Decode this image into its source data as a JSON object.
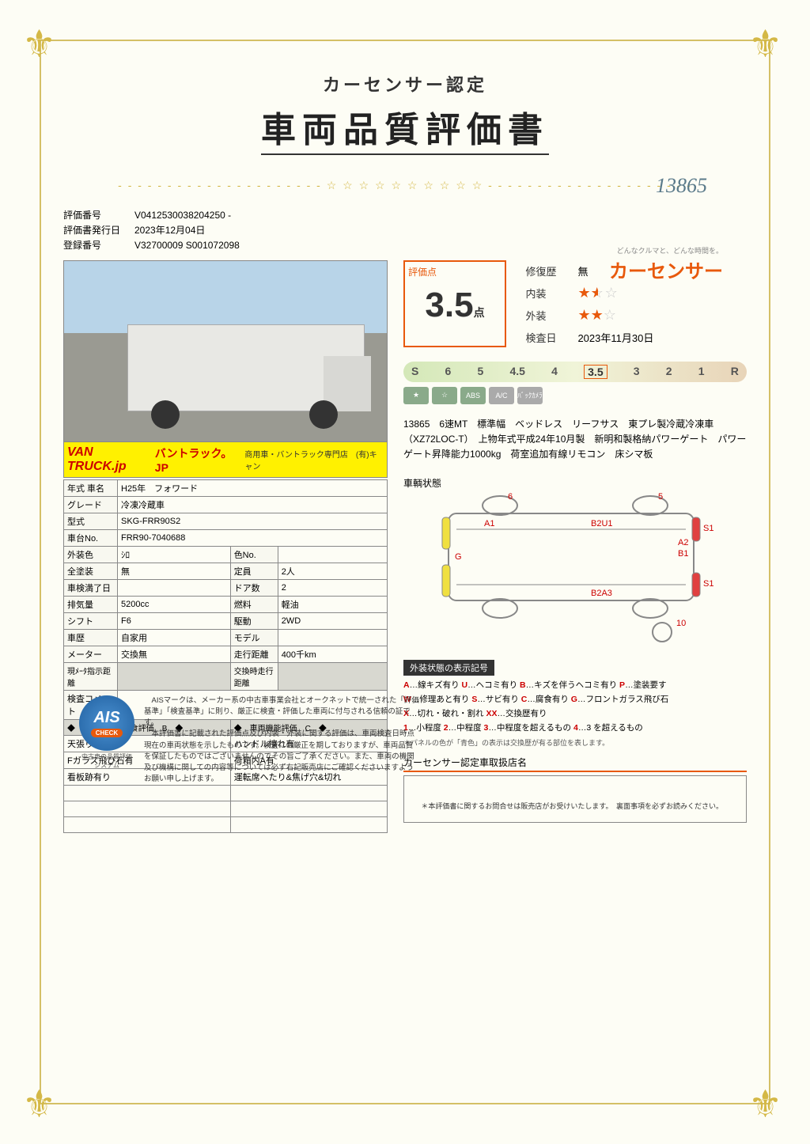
{
  "header": {
    "subtitle": "カーセンサー認定",
    "title": "車両品質評価書",
    "handwritten": "13865"
  },
  "brand": {
    "tagline": "どんなクルマと、どんな時間を。",
    "name": "カーセンサー"
  },
  "meta": {
    "eval_no_label": "評価番号",
    "eval_no": "V0412530038204250 -",
    "issue_label": "評価書発行日",
    "issue": "2023年12月04日",
    "reg_label": "登録番号",
    "reg": "V32700009 S001072098"
  },
  "photo_label": {
    "logo": "VAN TRUCK.jp",
    "main": "バントラック。JP",
    "sub": "商用車・バントラック専門店　(有)キャン"
  },
  "spec": {
    "rows": [
      {
        "l1": "年式 車名",
        "v1": "H25年　フォワード",
        "span": true
      },
      {
        "l1": "グレード",
        "v1": "冷凍冷蔵車",
        "span": true
      },
      {
        "l1": "型式",
        "v1": "SKG-FRR90S2",
        "span": true
      },
      {
        "l1": "車台No.",
        "v1": "FRR90-7040688",
        "span": true
      },
      {
        "l1": "外装色",
        "v1": "ｼﾛ",
        "l2": "色No.",
        "v2": ""
      },
      {
        "l1": "全塗装",
        "v1": "無",
        "l2": "定員",
        "v2": "2人"
      },
      {
        "l1": "車検満了日",
        "v1": "",
        "l2": "ドア数",
        "v2": "2"
      },
      {
        "l1": "排気量",
        "v1": "5200cc",
        "l2": "燃料",
        "v2": "軽油"
      },
      {
        "l1": "シフト",
        "v1": "F6",
        "l2": "駆動",
        "v2": "2WD"
      },
      {
        "l1": "車歴",
        "v1": "自家用",
        "l2": "モデル",
        "v2": ""
      },
      {
        "l1": "メーター",
        "v1": "交換無",
        "l2": "走行距離",
        "v2": "400千km"
      }
    ],
    "meter_row": {
      "l1": "現ﾒｰﾀ指示距離",
      "v1": "",
      "l2": "交換時走行距離",
      "v2": ""
    },
    "inspect_label": "検査コメント",
    "eval_header": {
      "left": "◆　フレーム錆腐食評価　B　◆",
      "right": "◆　車両機能評価　C　◆"
    },
    "comments": [
      {
        "c1": "天張り汚れ有",
        "c2": "ハンドル擦れ有"
      },
      {
        "c1": "Fガラス飛び石有",
        "c2": "荷箱内A有"
      },
      {
        "c1": "看板跡有り",
        "c2": "運転席へたり&焦げ穴&切れ"
      },
      {
        "c1": "",
        "c2": ""
      },
      {
        "c1": "",
        "c2": ""
      },
      {
        "c1": "",
        "c2": ""
      }
    ]
  },
  "score": {
    "label": "評価点",
    "value": "3.5",
    "unit": "点",
    "repair_label": "修復歴",
    "repair": "無",
    "interior_label": "内装",
    "interior_stars": 1.5,
    "exterior_label": "外装",
    "exterior_stars": 2,
    "inspect_date_label": "検査日",
    "inspect_date": "2023年11月30日"
  },
  "scale": {
    "items": [
      "S",
      "6",
      "5",
      "4.5",
      "4",
      "3.5",
      "3",
      "2",
      "1",
      "R"
    ],
    "selected": "3.5"
  },
  "features": [
    "★",
    "☆",
    "ABS",
    "A/C",
    "ﾊﾞｯｸｶﾒﾗ"
  ],
  "description": "13865　6速MT　標準幅　ベッドレス　リーフサス　東プレ製冷蔵冷凍車（XZ72LOC-T）　上物年式平成24年10月製　新明和製格納パワーゲート　パワーゲート昇降能力1000kg　荷室追加有線リモコン　床シマ板",
  "diagram": {
    "label": "車輌状態",
    "marks": {
      "A1": "A1",
      "B2U1": "B2U1",
      "G": "G",
      "A2": "A2",
      "B1": "B1",
      "S1a": "S1",
      "S1b": "S1",
      "B2A3": "B2A3",
      "n6": "6",
      "n5": "5",
      "n10": "10"
    }
  },
  "legend": {
    "title": "外装状態の表示記号",
    "lines": [
      [
        {
          "r": "A"
        },
        "…線キズ有り ",
        {
          "r": "U"
        },
        "…ヘコミ有り ",
        {
          "r": "B"
        },
        "…キズを伴うヘコミ有り ",
        {
          "r": "P"
        },
        "…塗装要す"
      ],
      [
        {
          "r": "W"
        },
        "…修理あと有り ",
        {
          "r": "S"
        },
        "…サビ有り ",
        {
          "r": "C"
        },
        "…腐食有り ",
        {
          "r": "G"
        },
        "…フロントガラス飛び石"
      ],
      [
        {
          "r": "X"
        },
        "…切れ・破れ・割れ ",
        {
          "r": "XX"
        },
        "…交換歴有り"
      ],
      [
        {
          "r": "1"
        },
        "…小程度 ",
        {
          "r": "2"
        },
        "…中程度 ",
        {
          "r": "3"
        },
        "…中程度を超えるもの ",
        {
          "r": "4"
        },
        "…3 を超えるもの"
      ]
    ],
    "note": "＊パネルの色が「青色」の表示は交換歴が有る部位を表します。"
  },
  "dealer": {
    "title": "カーセンサー認定車取扱店名"
  },
  "ais": {
    "badge_main": "AIS",
    "badge_sub": "CHECK",
    "caption": "中古車の品質評価システム",
    "text": "　AISマークは、メーカー系の中古車事業会社とオークネットで統一された「評価基準」「検査基準」に則り、厳正に検査・評価した車両に付与される信頼の証です。\n　本評価書に記載された評価点及び内装・外装に関する評価は、車両検査日時点現在の車両状態を示したものです。検査には厳正を期しておりますが、車両品質を保証したものではございませんのでその旨ご了承ください。また、車両の機関及び機構に関しての内容等については必ず右記販売店にご確認くださいますようお願い申し上げます。"
  },
  "footnote": "＊本評価書に関するお問合せは販売店がお受けいたします。　裏面事項を必ずお読みください。",
  "colors": {
    "accent": "#e8590c",
    "gold": "#d4b846"
  }
}
